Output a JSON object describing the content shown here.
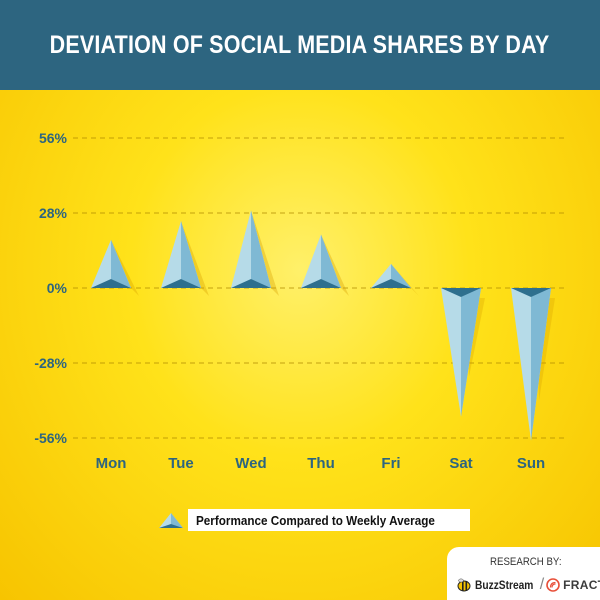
{
  "header": {
    "title": "DEVIATION OF SOCIAL MEDIA SHARES BY DAY"
  },
  "colors": {
    "header_bg": "#2d6580",
    "background": "#ffe21a",
    "axis_text": "#2d6580",
    "spike_light": "#b6dbe8",
    "spike_mid": "#7fb9d4",
    "spike_dark": "#2e6f8e"
  },
  "chart_data": {
    "type": "bar",
    "title": "DEVIATION OF SOCIAL MEDIA SHARES BY DAY",
    "categories": [
      "Mon",
      "Tue",
      "Wed",
      "Thu",
      "Fri",
      "Sat",
      "Sun"
    ],
    "series": [
      {
        "name": "Performance Compared to Weekly Average",
        "values": [
          18,
          25,
          29,
          20,
          9,
          -48,
          -57
        ]
      }
    ],
    "y_ticks": [
      "56%",
      "28%",
      "0%",
      "-28%",
      "-56%"
    ],
    "y_tick_values": [
      56,
      28,
      0,
      -28,
      -56
    ],
    "ylim": [
      -56,
      56
    ],
    "unit": "%",
    "grid": true,
    "legend_position": "bottom-center"
  },
  "legend": {
    "label": "Performance Compared to Weekly Average"
  },
  "credit": {
    "label": "RESEARCH BY:",
    "logo_1": "BuzzStream",
    "separator": "/",
    "logo_2": "FRACTL"
  }
}
